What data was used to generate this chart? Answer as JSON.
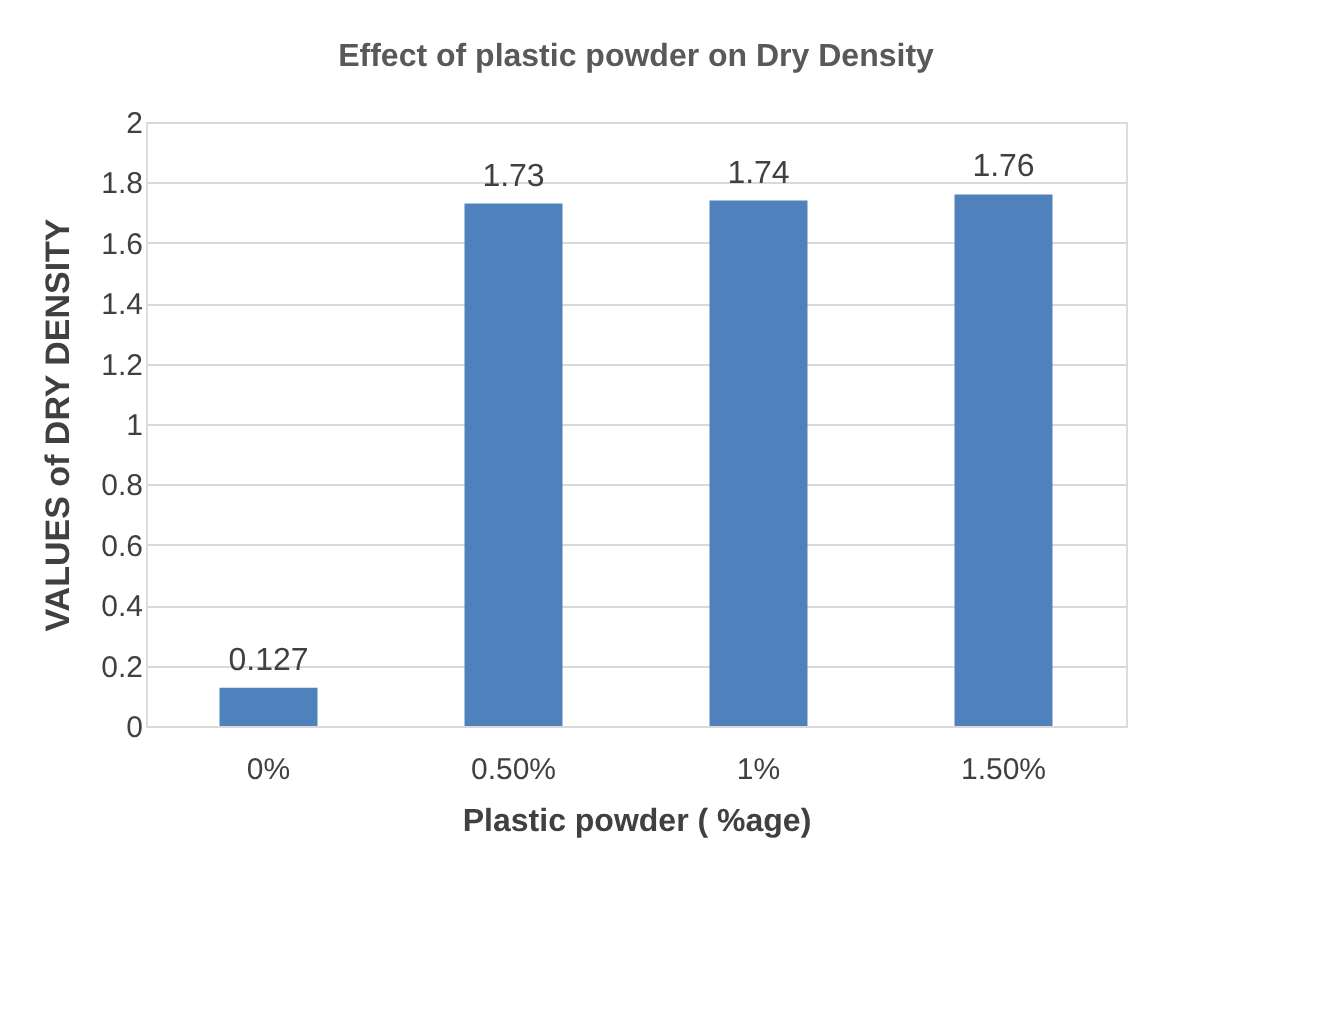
{
  "chart_data": {
    "type": "bar",
    "title": "Effect of plastic powder on  Dry Density",
    "xlabel": "Plastic powder ( %age)",
    "ylabel": "VALUES of DRY DENSITY",
    "categories": [
      "0%",
      "0.50%",
      "1%",
      "1.50%"
    ],
    "values": [
      0.127,
      1.73,
      1.74,
      1.76
    ],
    "color": "#4f81bd",
    "ylim": [
      0,
      2
    ],
    "yticks": [
      0,
      0.2,
      0.4,
      0.6,
      0.8,
      1,
      1.2,
      1.4,
      1.6,
      1.8,
      2
    ],
    "grid": "y",
    "data_labels": true
  }
}
